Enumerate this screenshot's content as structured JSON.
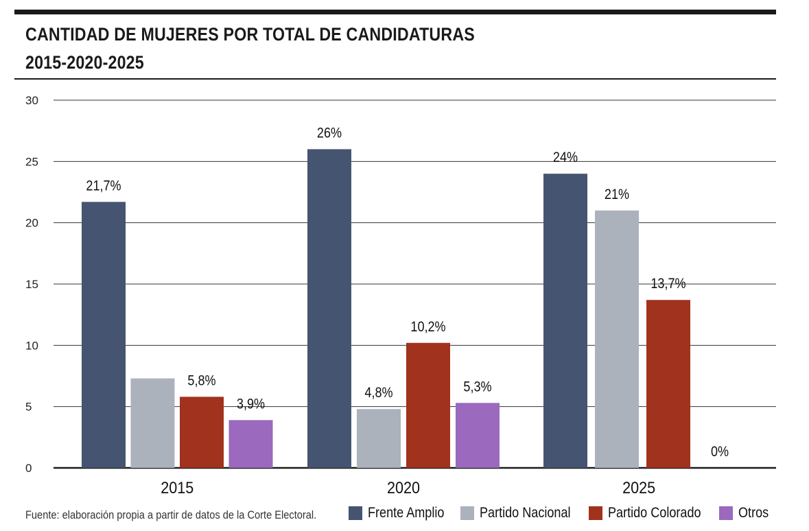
{
  "header": {
    "title_line1": "CANTIDAD DE MUJERES POR TOTAL DE CANDIDATURAS",
    "title_line2": "2015-2020-2025"
  },
  "footer": {
    "source": "Fuente: elaboración propia a partir de datos de la Corte Electoral."
  },
  "chart_data": {
    "type": "bar",
    "title": "CANTIDAD DE MUJERES POR TOTAL DE CANDIDATURAS 2015-2020-2025",
    "xlabel": "",
    "ylabel": "",
    "ylim": [
      0,
      30
    ],
    "yticks": [
      0,
      5,
      10,
      15,
      20,
      25,
      30
    ],
    "grid": true,
    "legend_position": "bottom-right",
    "categories": [
      "2015",
      "2020",
      "2025"
    ],
    "series": [
      {
        "name": "Frente Amplio",
        "color": "#455470",
        "values": [
          21.7,
          26,
          24
        ],
        "labels": [
          "21,7%",
          "26%",
          "24%"
        ]
      },
      {
        "name": "Partido Nacional",
        "color": "#acb2bc",
        "values": [
          7.3,
          4.8,
          21
        ],
        "labels": [
          "",
          "4,8%",
          "21%"
        ]
      },
      {
        "name": "Partido Colorado",
        "color": "#a0321e",
        "values": [
          5.8,
          10.2,
          13.7
        ],
        "labels": [
          "5,8%",
          "10,2%",
          "13,7%"
        ]
      },
      {
        "name": "Otros",
        "color": "#9b69bd",
        "values": [
          3.9,
          5.3,
          0
        ],
        "labels": [
          "3,9%",
          "5,3%",
          "0%"
        ]
      }
    ]
  }
}
